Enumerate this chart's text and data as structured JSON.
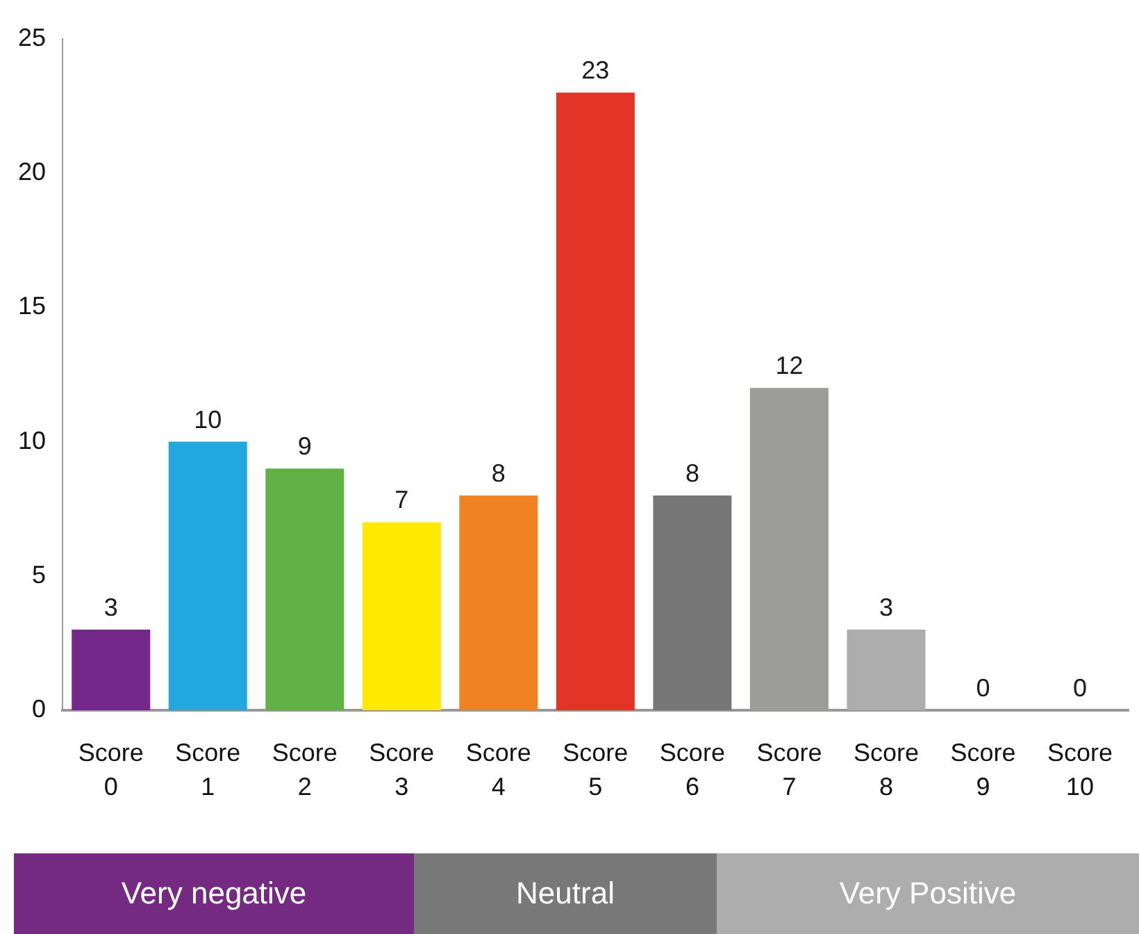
{
  "chart_data": {
    "type": "bar",
    "categories": [
      "Score 0",
      "Score 1",
      "Score 2",
      "Score 3",
      "Score 4",
      "Score 5",
      "Score 6",
      "Score 7",
      "Score 8",
      "Score 9",
      "Score 10"
    ],
    "values": [
      3,
      10,
      9,
      7,
      8,
      23,
      8,
      12,
      3,
      0,
      0
    ],
    "colors": [
      "#74288a",
      "#22a7df",
      "#60b246",
      "#fdea00",
      "#f08222",
      "#e43427",
      "#777777",
      "#9b9b9a",
      "#adadad",
      "#9b9b9a",
      "#9b9b9a"
    ],
    "ylim": [
      0,
      25
    ],
    "yticks": [
      0,
      5,
      10,
      15,
      20,
      25
    ],
    "data_labels": true,
    "annotations": [
      "Very negative",
      "Neutral",
      "Very Positive"
    ]
  }
}
